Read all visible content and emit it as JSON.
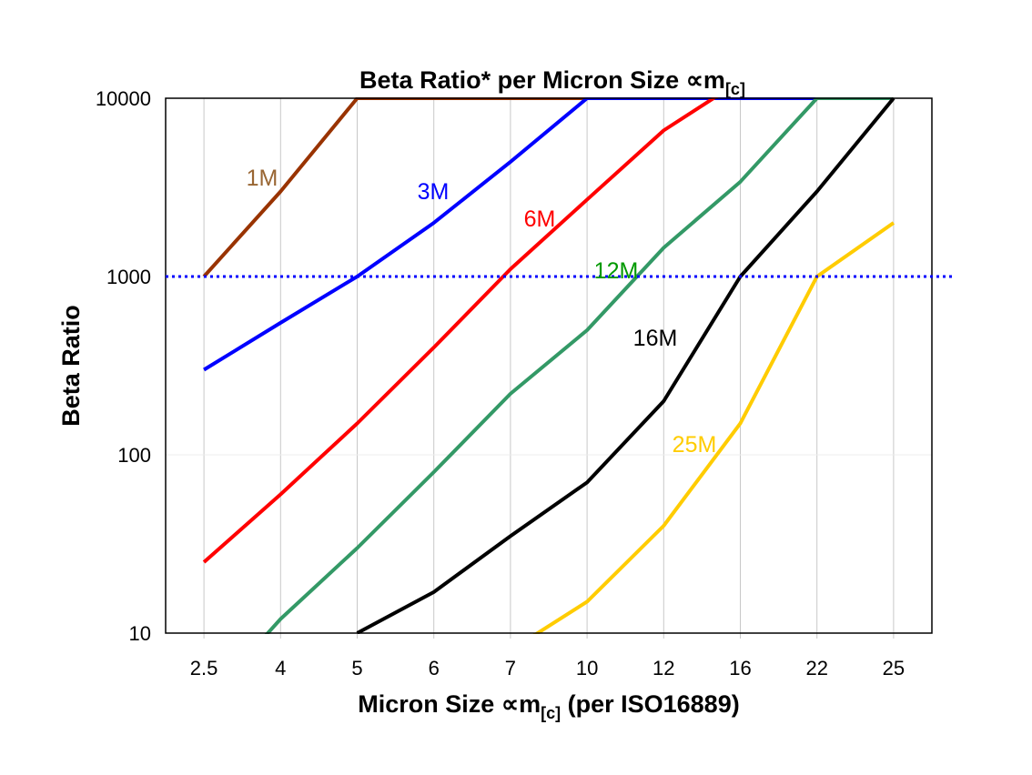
{
  "chart_data": {
    "type": "line",
    "title": "Beta Ratio* per Micron Size ∝m",
    "title_subscript": "[c]",
    "xlabel": "Micron Size ∝m",
    "xlabel_subscript": "[c]",
    "xlabel_suffix": " (per ISO16889)",
    "ylabel": "Beta Ratio",
    "y_scale": "log",
    "ylim": [
      10,
      10000
    ],
    "y_ticks": [
      "10",
      "100",
      "1000",
      "10000"
    ],
    "categories": [
      "2.5",
      "4",
      "5",
      "6",
      "7",
      "10",
      "12",
      "16",
      "22",
      "25"
    ],
    "grid": "vertical lines at categories, light horizontal lines at decades",
    "reference_line": {
      "value": 1000,
      "color": "#0000FF",
      "style": "dotted"
    },
    "series": [
      {
        "name": "1M",
        "color": "#993300",
        "label_color": "#996633",
        "values": [
          1000,
          3000,
          10000,
          10000,
          10000,
          10000,
          null,
          null,
          null,
          null
        ]
      },
      {
        "name": "3M",
        "color": "#0000FF",
        "label_color": "#0000FF",
        "values": [
          300,
          550,
          1000,
          2000,
          4400,
          10000,
          10000,
          10000,
          10000,
          null
        ]
      },
      {
        "name": "6M",
        "color": "#FF0000",
        "label_color": "#FF0000",
        "values": [
          25,
          60,
          150,
          400,
          1100,
          2700,
          6600,
          12500,
          null,
          null
        ]
      },
      {
        "name": "12M",
        "color": "#339966",
        "label_color": "#009900",
        "values": [
          4,
          12,
          30,
          80,
          220,
          500,
          1450,
          3400,
          10000,
          10000
        ]
      },
      {
        "name": "16M",
        "color": "#000000",
        "label_color": "#000000",
        "values": [
          null,
          null,
          10,
          17,
          35,
          70,
          200,
          1000,
          3000,
          10000
        ]
      },
      {
        "name": "25M",
        "color": "#FFCC00",
        "label_color": "#FFCC00",
        "values": [
          null,
          null,
          null,
          null,
          8,
          15,
          40,
          150,
          1000,
          2000
        ]
      }
    ]
  }
}
